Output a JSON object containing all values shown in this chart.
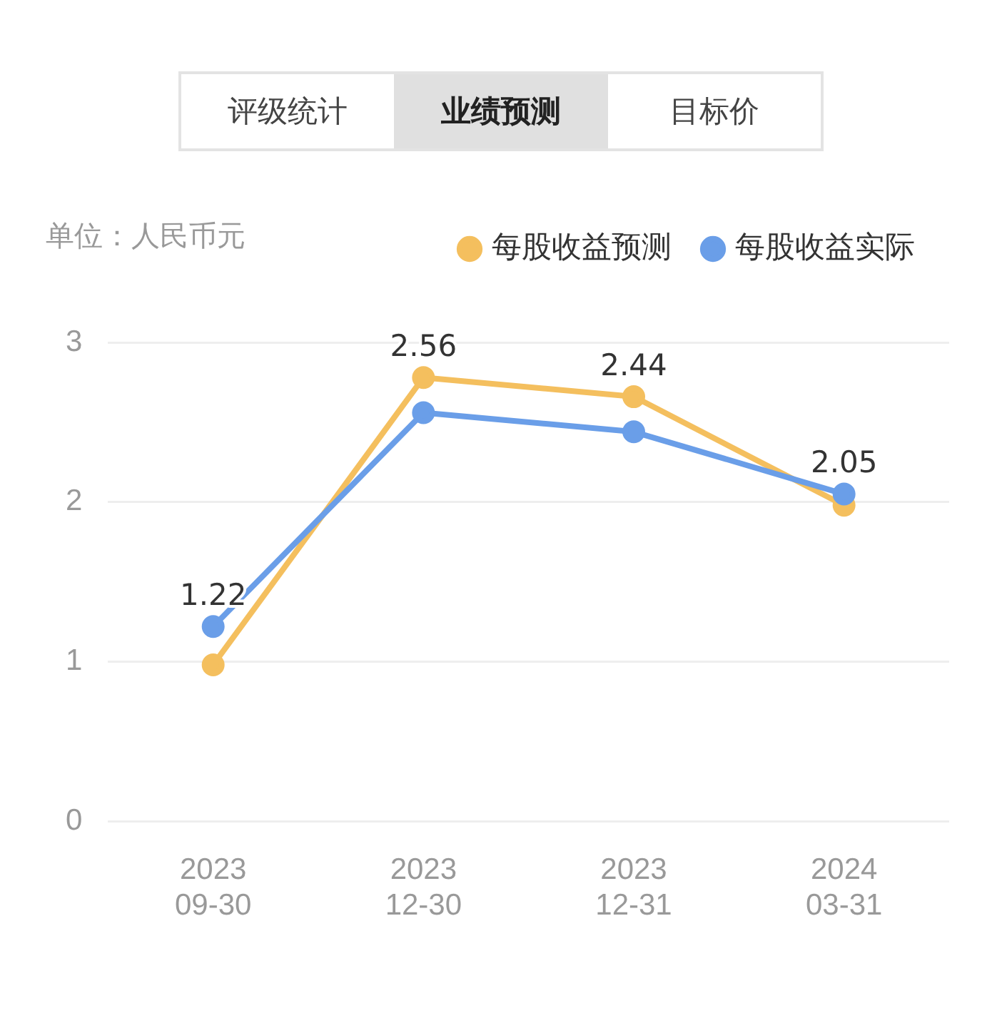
{
  "chart_data": {
    "type": "line",
    "subtitle": "单位：人民币元",
    "annotations": [
      "评级统计",
      "业绩预测",
      "目标价"
    ],
    "categories": [
      "2023\n09-30",
      "2023\n12-30",
      "2023\n12-31",
      "2024\n03-31"
    ],
    "series": [
      {
        "name": "每股收益预测",
        "color": "#f4bf5e",
        "values": [
          0.98,
          2.78,
          2.66,
          1.98
        ]
      },
      {
        "name": "每股收益实际",
        "color": "#6a9ee8",
        "values": [
          1.22,
          2.56,
          2.44,
          2.05
        ],
        "value_labels": [
          "1.22",
          "2.56",
          "2.44",
          "2.05"
        ]
      }
    ],
    "ylim": [
      0,
      3
    ],
    "yticks": [
      0,
      1,
      2,
      3
    ],
    "grid": "y",
    "legend": "top right",
    "marker": "circle",
    "line_style": "solid"
  }
}
